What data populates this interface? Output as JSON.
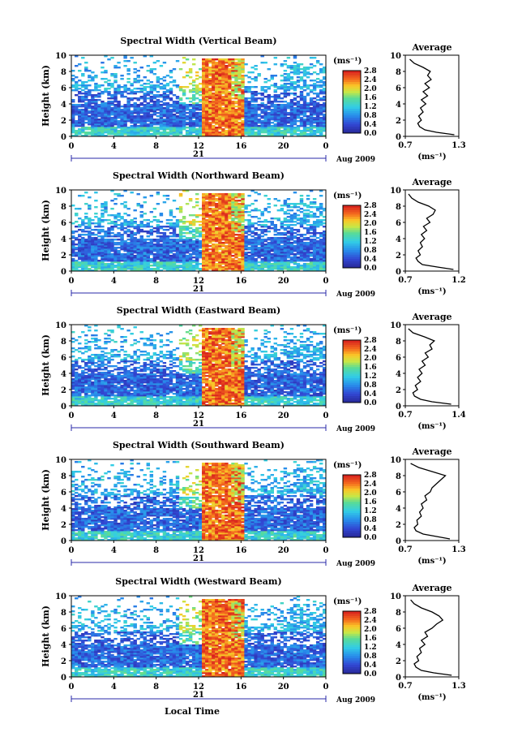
{
  "figure": {
    "date_label": "Aug 2009",
    "day_label": "21",
    "x_axis_label": "Local Time",
    "y_axis_label": "Height (km)",
    "colorbar_unit": "(ms⁻¹)",
    "avg_title": "Average",
    "avg_unit": "(ms⁻¹)",
    "colors": {
      "low": "#2a2aa8",
      "mid": "#33ccdd",
      "high": "#dd2222",
      "background": "#ffffff"
    }
  },
  "chart_data": [
    {
      "type": "heatmap",
      "title": "Spectral Width (Vertical Beam)",
      "xlabel": "",
      "ylabel": "Height (km)",
      "x_ticks": [
        "0",
        "4",
        "8",
        "12",
        "16",
        "20",
        "0"
      ],
      "y_ticks": [
        "0",
        "2",
        "4",
        "6",
        "8",
        "10"
      ],
      "xlim": [
        0,
        24
      ],
      "ylim": [
        0,
        10
      ],
      "colorbar": {
        "unit": "(ms⁻¹)",
        "ticks": [
          "0.0",
          "0.4",
          "0.8",
          "1.2",
          "1.6",
          "2.0",
          "2.4",
          "2.8"
        ],
        "range": [
          0,
          2.8
        ]
      },
      "average_profile": {
        "title": "Average",
        "unit": "(ms⁻¹)",
        "x_ticks": [
          "0.7",
          "1.3"
        ],
        "xlim": [
          0.7,
          1.3
        ],
        "y_ticks": [
          "0",
          "2",
          "4",
          "6",
          "8",
          "10"
        ],
        "height": [
          0.2,
          0.5,
          0.8,
          1.2,
          1.6,
          2.0,
          2.5,
          3.0,
          3.5,
          4.0,
          4.5,
          5.0,
          5.5,
          6.0,
          6.5,
          7.0,
          7.5,
          8.0,
          8.5,
          9.0,
          9.5
        ],
        "value": [
          1.25,
          1.05,
          0.92,
          0.86,
          0.84,
          0.88,
          0.85,
          0.9,
          0.87,
          0.93,
          0.88,
          0.95,
          0.9,
          0.97,
          0.92,
          0.99,
          0.95,
          0.98,
          0.9,
          0.8,
          0.75
        ]
      }
    },
    {
      "type": "heatmap",
      "title": "Spectral Width (Northward Beam)",
      "xlabel": "",
      "ylabel": "Height (km)",
      "x_ticks": [
        "0",
        "4",
        "8",
        "12",
        "16",
        "20",
        "0"
      ],
      "y_ticks": [
        "0",
        "2",
        "4",
        "6",
        "8",
        "10"
      ],
      "xlim": [
        0,
        24
      ],
      "ylim": [
        0,
        10
      ],
      "colorbar": {
        "unit": "(ms⁻¹)",
        "ticks": [
          "0.0",
          "0.4",
          "0.8",
          "1.2",
          "1.6",
          "2.0",
          "2.4",
          "2.8"
        ],
        "range": [
          0,
          2.8
        ]
      },
      "average_profile": {
        "title": "Average",
        "unit": "(ms⁻¹)",
        "x_ticks": [
          "0.7",
          "1.2"
        ],
        "xlim": [
          0.7,
          1.2
        ],
        "y_ticks": [
          "0",
          "2",
          "4",
          "6",
          "8",
          "10"
        ],
        "height": [
          0.2,
          0.5,
          0.8,
          1.2,
          1.6,
          2.0,
          2.5,
          3.0,
          3.5,
          4.0,
          4.5,
          5.0,
          5.5,
          6.0,
          6.5,
          7.0,
          7.5,
          8.0,
          8.5,
          9.0,
          9.5
        ],
        "value": [
          1.15,
          1.0,
          0.86,
          0.82,
          0.8,
          0.84,
          0.82,
          0.86,
          0.84,
          0.88,
          0.85,
          0.9,
          0.87,
          0.93,
          0.9,
          0.96,
          0.98,
          0.92,
          0.82,
          0.76,
          0.73
        ]
      }
    },
    {
      "type": "heatmap",
      "title": "Spectral Width (Eastward Beam)",
      "xlabel": "",
      "ylabel": "Height (km)",
      "x_ticks": [
        "0",
        "4",
        "8",
        "12",
        "16",
        "20",
        "0"
      ],
      "y_ticks": [
        "0",
        "2",
        "4",
        "6",
        "8",
        "10"
      ],
      "xlim": [
        0,
        24
      ],
      "ylim": [
        0,
        10
      ],
      "colorbar": {
        "unit": "(ms⁻¹)",
        "ticks": [
          "0.0",
          "0.4",
          "0.8",
          "1.2",
          "1.6",
          "2.0",
          "2.4",
          "2.8"
        ],
        "range": [
          0,
          2.8
        ]
      },
      "average_profile": {
        "title": "Average",
        "unit": "(ms⁻¹)",
        "x_ticks": [
          "0.7",
          "1.4"
        ],
        "xlim": [
          0.7,
          1.4
        ],
        "y_ticks": [
          "0",
          "2",
          "4",
          "6",
          "8",
          "10"
        ],
        "height": [
          0.2,
          0.5,
          0.8,
          1.2,
          1.6,
          2.0,
          2.5,
          3.0,
          3.5,
          4.0,
          4.5,
          5.0,
          5.5,
          6.0,
          6.5,
          7.0,
          7.5,
          8.0,
          8.5,
          9.0,
          9.5
        ],
        "value": [
          1.3,
          1.05,
          0.9,
          0.82,
          0.8,
          0.86,
          0.83,
          0.9,
          0.86,
          0.92,
          0.88,
          0.96,
          0.92,
          1.0,
          0.96,
          1.05,
          1.02,
          1.08,
          0.95,
          0.8,
          0.74
        ]
      }
    },
    {
      "type": "heatmap",
      "title": "Spectral Width (Southward Beam)",
      "xlabel": "",
      "ylabel": "Height (km)",
      "x_ticks": [
        "0",
        "4",
        "8",
        "12",
        "16",
        "20",
        "0"
      ],
      "y_ticks": [
        "0",
        "2",
        "4",
        "6",
        "8",
        "10"
      ],
      "xlim": [
        0,
        24
      ],
      "ylim": [
        0,
        10
      ],
      "colorbar": {
        "unit": "(ms⁻¹)",
        "ticks": [
          "0.0",
          "0.4",
          "0.8",
          "1.2",
          "1.6",
          "2.0",
          "2.4",
          "2.8"
        ],
        "range": [
          0,
          2.8
        ]
      },
      "average_profile": {
        "title": "Average",
        "unit": "(ms⁻¹)",
        "x_ticks": [
          "0.7",
          "1.3"
        ],
        "xlim": [
          0.7,
          1.3
        ],
        "y_ticks": [
          "0",
          "2",
          "4",
          "6",
          "8",
          "10"
        ],
        "height": [
          0.2,
          0.5,
          0.8,
          1.2,
          1.6,
          2.0,
          2.5,
          3.0,
          3.5,
          4.0,
          4.5,
          5.0,
          5.5,
          6.0,
          6.5,
          7.0,
          7.5,
          8.0,
          8.5,
          9.0,
          9.5
        ],
        "value": [
          1.2,
          1.05,
          0.9,
          0.82,
          0.8,
          0.84,
          0.83,
          0.88,
          0.86,
          0.9,
          0.88,
          0.94,
          0.92,
          0.98,
          1.0,
          1.05,
          1.1,
          1.15,
          1.0,
          0.85,
          0.76
        ]
      }
    },
    {
      "type": "heatmap",
      "title": "Spectral Width (Westward Beam)",
      "xlabel": "Local Time",
      "ylabel": "Height (km)",
      "x_ticks": [
        "0",
        "4",
        "8",
        "12",
        "16",
        "20",
        "0"
      ],
      "y_ticks": [
        "0",
        "2",
        "4",
        "6",
        "8",
        "10"
      ],
      "xlim": [
        0,
        24
      ],
      "ylim": [
        0,
        10
      ],
      "colorbar": {
        "unit": "(ms⁻¹)",
        "ticks": [
          "0.0",
          "0.4",
          "0.8",
          "1.2",
          "1.6",
          "2.0",
          "2.4",
          "2.8"
        ],
        "range": [
          0,
          2.8
        ]
      },
      "average_profile": {
        "title": "Average",
        "unit": "(ms⁻¹)",
        "x_ticks": [
          "0.7",
          "1.3"
        ],
        "xlim": [
          0.7,
          1.3
        ],
        "y_ticks": [
          "0",
          "2",
          "4",
          "6",
          "8",
          "10"
        ],
        "height": [
          0.2,
          0.5,
          0.8,
          1.2,
          1.6,
          2.0,
          2.5,
          3.0,
          3.5,
          4.0,
          4.5,
          5.0,
          5.5,
          6.0,
          6.5,
          7.0,
          7.5,
          8.0,
          8.5,
          9.0,
          9.5
        ],
        "value": [
          1.22,
          1.02,
          0.88,
          0.82,
          0.8,
          0.85,
          0.83,
          0.88,
          0.86,
          0.92,
          0.88,
          0.95,
          0.92,
          1.0,
          1.05,
          1.12,
          1.08,
          1.0,
          0.88,
          0.8,
          0.76
        ]
      }
    }
  ]
}
